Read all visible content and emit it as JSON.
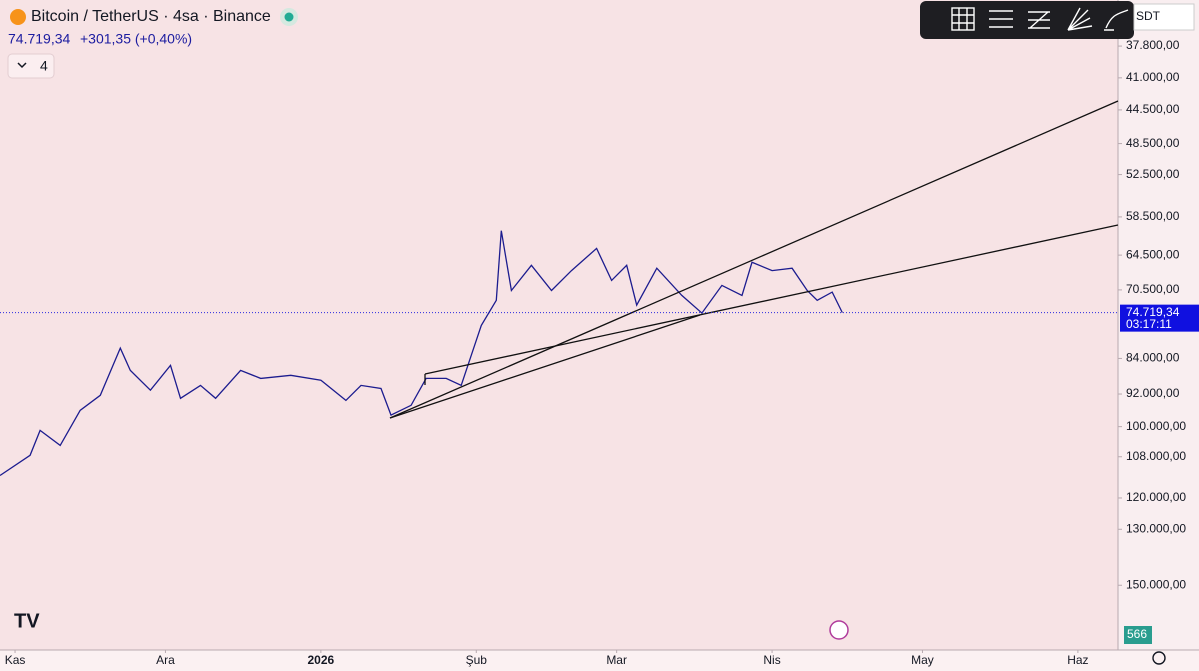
{
  "chart_data": {
    "type": "line",
    "title": "Bitcoin / TetherUS · 4sa · Binance",
    "last_price": {
      "value": 74719.34,
      "label": "74.719,34"
    },
    "change": "+301,35 (+0,40%)",
    "interval_badge": "4",
    "countdown": "03:17:11",
    "volume_badge": "566",
    "currency": "SDT",
    "log_scale": true,
    "inverted": true,
    "color": "#1c1c8f",
    "xlim": [
      -3,
      220
    ],
    "ylim": [
      33600,
      177000
    ],
    "xticks": [
      {
        "value": 0,
        "label": "Kas"
      },
      {
        "value": 30,
        "label": "Ara"
      },
      {
        "value": 61,
        "label": "2026"
      },
      {
        "value": 92,
        "label": "Şub"
      },
      {
        "value": 120,
        "label": "Mar"
      },
      {
        "value": 151,
        "label": "Nis"
      },
      {
        "value": 181,
        "label": "May"
      },
      {
        "value": 212,
        "label": "Haz"
      }
    ],
    "yticks": [
      {
        "value": 37800,
        "label": "37.800,00"
      },
      {
        "value": 41000,
        "label": "41.000,00"
      },
      {
        "value": 44500,
        "label": "44.500,00"
      },
      {
        "value": 48500,
        "label": "48.500,00"
      },
      {
        "value": 52500,
        "label": "52.500,00"
      },
      {
        "value": 58500,
        "label": "58.500,00"
      },
      {
        "value": 64500,
        "label": "64.500,00"
      },
      {
        "value": 70500,
        "label": "70.500,00"
      },
      {
        "value": 84000,
        "label": "84.000,00"
      },
      {
        "value": 92000,
        "label": "92.000,00"
      },
      {
        "value": 100000,
        "label": "100.000,00"
      },
      {
        "value": 108000,
        "label": "108.000,00"
      },
      {
        "value": 120000,
        "label": "120.000,00"
      },
      {
        "value": 130000,
        "label": "130.000,00"
      },
      {
        "value": 150000,
        "label": "150.000,00"
      }
    ],
    "series": [
      {
        "name": "BTCUSDT",
        "color": "#1c1c8f",
        "x": [
          -3,
          3,
          5,
          9,
          13,
          17,
          21,
          23,
          27,
          31,
          33,
          37,
          40,
          45,
          49,
          55,
          61,
          66,
          69,
          73,
          75,
          79,
          82,
          86,
          89,
          91,
          93,
          96,
          97,
          99,
          103,
          107,
          111,
          116,
          119,
          122,
          124,
          128,
          133,
          137,
          141,
          145,
          147,
          151,
          155,
          158,
          160,
          163,
          165
        ],
        "values": [
          113300,
          107600,
          100960,
          104900,
          95900,
          92300,
          81800,
          86600,
          91100,
          85500,
          93000,
          90000,
          93000,
          86600,
          88400,
          87700,
          88800,
          93500,
          90000,
          90700,
          97100,
          94700,
          88400,
          88400,
          90000,
          83300,
          77200,
          72400,
          60600,
          70600,
          66200,
          70600,
          67100,
          63400,
          68800,
          66200,
          73300,
          66700,
          71500,
          74800,
          69700,
          71500,
          65700,
          67100,
          66700,
          70600,
          72400,
          70900,
          74719.34
        ]
      }
    ]
  }
}
